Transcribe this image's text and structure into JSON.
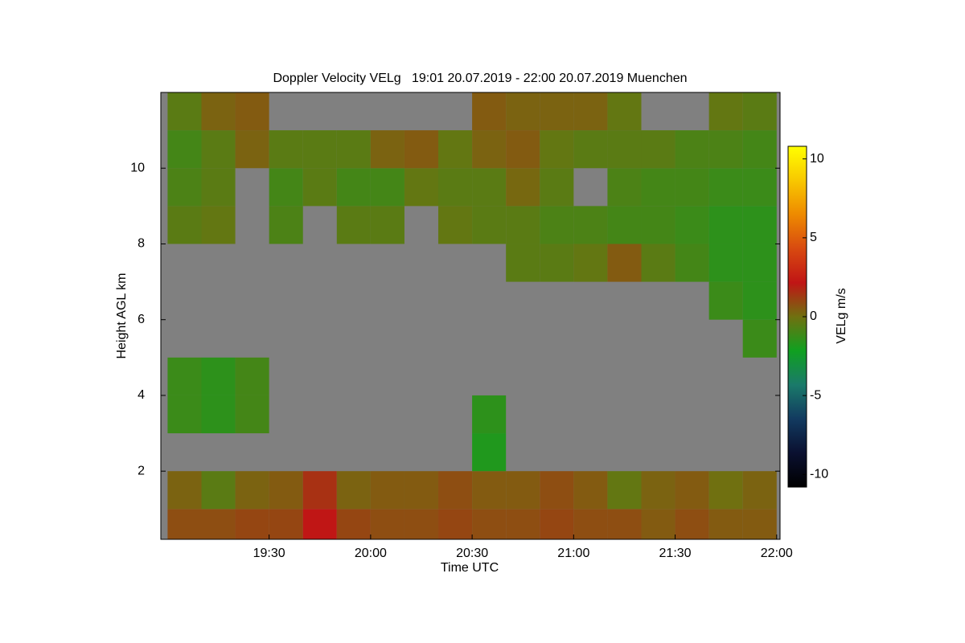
{
  "chart_data": {
    "type": "heatmap",
    "title": "Doppler Velocity VELg   19:01 20.07.2019 - 22:00 20.07.2019 Muenchen",
    "xlabel": "Time UTC",
    "ylabel": "Height AGL km",
    "x": [
      0,
      10,
      20,
      30,
      40,
      50,
      60,
      70,
      80,
      90,
      100,
      110,
      120,
      130,
      140,
      150,
      160,
      170,
      180
    ],
    "y": [
      0.2,
      1,
      2,
      3,
      4,
      5,
      6,
      7,
      8,
      9,
      10,
      11,
      12
    ],
    "z": [
      [
        0.8,
        0.8,
        1,
        1,
        2.2,
        1,
        0.8,
        0.8,
        1,
        0.8,
        0.8,
        1,
        0.8,
        0.8,
        0.5,
        0.8,
        0.5,
        0.5
      ],
      [
        0.3,
        -0.5,
        0.3,
        0.5,
        1.5,
        0.3,
        0.5,
        0.5,
        0.8,
        0.5,
        0.5,
        0.8,
        0.5,
        -0.3,
        0.3,
        0.5,
        0,
        0.3
      ],
      [
        null,
        null,
        null,
        null,
        null,
        null,
        null,
        null,
        null,
        -1.8,
        null,
        null,
        null,
        null,
        null,
        null,
        null,
        null
      ],
      [
        -1.2,
        -1.5,
        -1,
        null,
        null,
        null,
        null,
        null,
        null,
        -1.5,
        null,
        null,
        null,
        null,
        null,
        null,
        null,
        null
      ],
      [
        -1.2,
        -1.5,
        -1,
        null,
        null,
        null,
        null,
        null,
        null,
        null,
        null,
        null,
        null,
        null,
        null,
        null,
        null,
        null
      ],
      [
        null,
        null,
        null,
        null,
        null,
        null,
        null,
        null,
        null,
        null,
        null,
        null,
        null,
        null,
        null,
        null,
        null,
        -1.2
      ],
      [
        null,
        null,
        null,
        null,
        null,
        null,
        null,
        null,
        null,
        null,
        null,
        null,
        null,
        null,
        null,
        null,
        -1.2,
        -1.5
      ],
      [
        null,
        null,
        null,
        null,
        null,
        null,
        null,
        null,
        null,
        null,
        -0.5,
        -0.5,
        -0.3,
        0.5,
        -0.5,
        -1,
        -1.5,
        -1.5
      ],
      [
        -0.5,
        -0.3,
        null,
        -0.8,
        null,
        -0.5,
        -0.5,
        null,
        -0.3,
        -0.5,
        -0.5,
        -0.8,
        -0.8,
        -1,
        -1,
        -1.2,
        -1.5,
        -1.5
      ],
      [
        -0.8,
        -0.5,
        null,
        -1,
        -0.5,
        -1,
        -1,
        -0.3,
        -0.5,
        -0.5,
        0.2,
        -0.5,
        null,
        -0.8,
        -1,
        -1,
        -1.2,
        -1.2
      ],
      [
        -1,
        -0.5,
        0.3,
        -0.5,
        -0.5,
        -0.5,
        0.3,
        0.5,
        -0.3,
        0.3,
        0.5,
        -0.3,
        -0.5,
        -0.5,
        -0.5,
        -0.8,
        -0.8,
        -1
      ],
      [
        -0.5,
        0.3,
        0.5,
        null,
        null,
        null,
        null,
        null,
        null,
        0.5,
        0.3,
        0.3,
        0.3,
        -0.3,
        null,
        null,
        -0.3,
        -0.5
      ]
    ],
    "xlim": [
      -2,
      181
    ],
    "ylim": [
      0.2,
      12
    ],
    "xticks": [
      {
        "value": 30,
        "label": "19:30"
      },
      {
        "value": 60,
        "label": "20:00"
      },
      {
        "value": 90,
        "label": "20:30"
      },
      {
        "value": 120,
        "label": "21:00"
      },
      {
        "value": 150,
        "label": "21:30"
      },
      {
        "value": 180,
        "label": "22:00"
      }
    ],
    "yticks": [
      2,
      4,
      6,
      8,
      10
    ],
    "colorbar_label": "VELg m/s",
    "zlim": [
      -10.8,
      10.8
    ],
    "zticks": [
      -10,
      -5,
      0,
      5,
      10
    ],
    "colormap": [
      "#000000",
      "#0a1030",
      "#123a60",
      "#1a7a6a",
      "#10a020",
      "#707010",
      "#c01515",
      "#d84a10",
      "#ee8a00",
      "#f8c800",
      "#ffff00"
    ],
    "missing_color": "#808080"
  }
}
